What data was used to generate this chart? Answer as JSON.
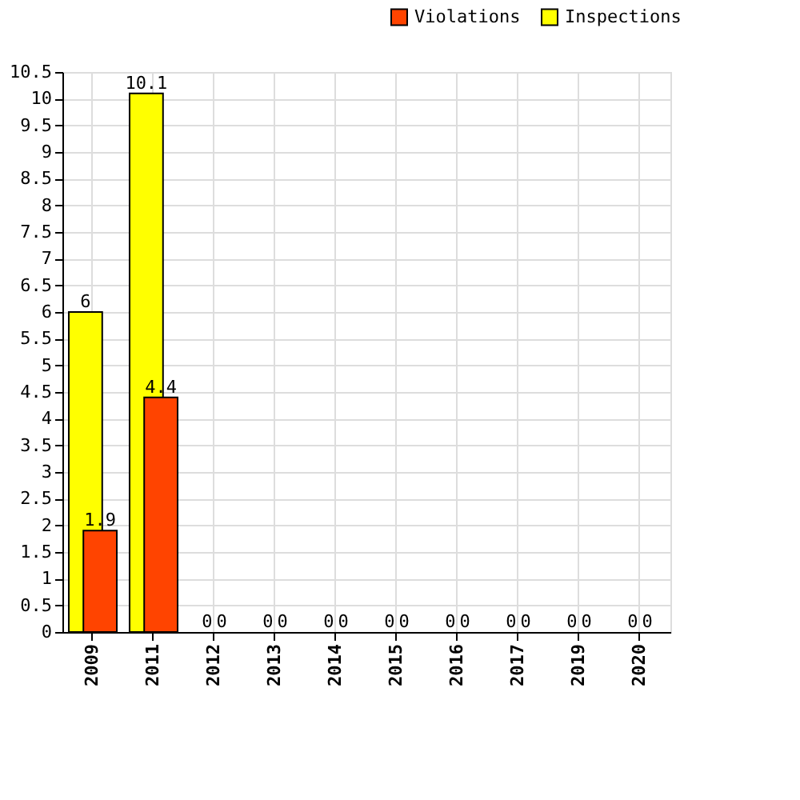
{
  "chart_data": {
    "type": "bar",
    "categories": [
      "2009",
      "2011",
      "2012",
      "2013",
      "2014",
      "2015",
      "2016",
      "2017",
      "2019",
      "2020"
    ],
    "series": [
      {
        "name": "Inspections",
        "color": "#ffff00",
        "values": [
          6,
          10.1,
          0,
          0,
          0,
          0,
          0,
          0,
          0,
          0
        ]
      },
      {
        "name": "Violations",
        "color": "#ff4400",
        "values": [
          1.9,
          4.4,
          0,
          0,
          0,
          0,
          0,
          0,
          0,
          0
        ]
      }
    ],
    "ylim": [
      0,
      10.5
    ],
    "yticks": [
      0,
      0.5,
      1,
      1.5,
      2,
      2.5,
      3,
      3.5,
      4,
      4.5,
      5,
      5.5,
      6,
      6.5,
      7,
      7.5,
      8,
      8.5,
      9,
      9.5,
      10,
      10.5
    ],
    "grid": true,
    "legend": "top right",
    "data_labels": true
  }
}
